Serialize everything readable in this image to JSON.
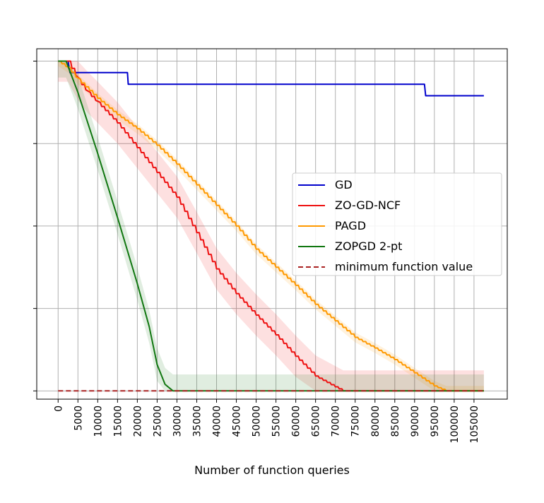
{
  "chart_data": {
    "type": "line",
    "title": "",
    "xlabel": "Number of function queries",
    "ylabel": "",
    "xlim": [
      -5400,
      113400
    ],
    "ylim": [
      -0.1,
      4.15
    ],
    "ytick_positions": [
      0,
      1,
      2,
      3,
      4
    ],
    "grid": true,
    "legend_position": "center-right",
    "xticks": [
      "0",
      "5000",
      "10000",
      "15000",
      "20000",
      "25000",
      "30000",
      "35000",
      "40000",
      "45000",
      "50000",
      "55000",
      "60000",
      "65000",
      "70000",
      "75000",
      "80000",
      "85000",
      "90000",
      "95000",
      "100000",
      "105000"
    ],
    "xtick_values": [
      0,
      5000,
      10000,
      15000,
      20000,
      25000,
      30000,
      35000,
      40000,
      45000,
      50000,
      55000,
      60000,
      65000,
      70000,
      75000,
      80000,
      85000,
      90000,
      95000,
      100000,
      105000
    ],
    "series": [
      {
        "name": "GD",
        "color": "#0000cc",
        "style": "step",
        "points": [
          [
            0,
            4.0
          ],
          [
            2500,
            4.0
          ],
          [
            3000,
            3.86
          ],
          [
            17500,
            3.86
          ],
          [
            17700,
            3.72
          ],
          [
            92500,
            3.72
          ],
          [
            92800,
            3.58
          ],
          [
            107500,
            3.58
          ]
        ]
      },
      {
        "name": "ZO-GD-NCF",
        "color": "#ee1111",
        "style": "stepped-line",
        "band": 0.25,
        "points": [
          [
            0,
            4.0
          ],
          [
            2500,
            4.0
          ],
          [
            5000,
            3.78
          ],
          [
            7500,
            3.62
          ],
          [
            10000,
            3.5
          ],
          [
            15000,
            3.25
          ],
          [
            20000,
            2.95
          ],
          [
            25000,
            2.65
          ],
          [
            30000,
            2.35
          ],
          [
            35000,
            1.92
          ],
          [
            40000,
            1.48
          ],
          [
            45000,
            1.18
          ],
          [
            50000,
            0.92
          ],
          [
            55000,
            0.68
          ],
          [
            60000,
            0.42
          ],
          [
            65000,
            0.18
          ],
          [
            70000,
            0.05
          ],
          [
            72000,
            0.0
          ],
          [
            107500,
            0.0
          ]
        ]
      },
      {
        "name": "PAGD",
        "color": "#ff9900",
        "style": "stepped-line",
        "band": 0.06,
        "points": [
          [
            0,
            4.0
          ],
          [
            2500,
            3.92
          ],
          [
            5000,
            3.78
          ],
          [
            10000,
            3.55
          ],
          [
            15000,
            3.35
          ],
          [
            20000,
            3.18
          ],
          [
            25000,
            2.98
          ],
          [
            30000,
            2.75
          ],
          [
            35000,
            2.5
          ],
          [
            40000,
            2.25
          ],
          [
            45000,
            2.0
          ],
          [
            50000,
            1.72
          ],
          [
            55000,
            1.5
          ],
          [
            60000,
            1.28
          ],
          [
            65000,
            1.05
          ],
          [
            70000,
            0.85
          ],
          [
            75000,
            0.65
          ],
          [
            80000,
            0.52
          ],
          [
            85000,
            0.38
          ],
          [
            90000,
            0.22
          ],
          [
            95000,
            0.06
          ],
          [
            98000,
            0.0
          ],
          [
            107500,
            0.0
          ]
        ]
      },
      {
        "name": "ZOPGD 2-pt",
        "color": "#117711",
        "style": "line",
        "band": 0.2,
        "points": [
          [
            0,
            4.0
          ],
          [
            2000,
            4.0
          ],
          [
            5000,
            3.62
          ],
          [
            10000,
            2.88
          ],
          [
            15000,
            2.1
          ],
          [
            20000,
            1.3
          ],
          [
            23000,
            0.78
          ],
          [
            25000,
            0.32
          ],
          [
            27000,
            0.08
          ],
          [
            29000,
            0.0
          ],
          [
            107500,
            0.0
          ]
        ]
      },
      {
        "name": "minimum function value",
        "color": "#aa2222",
        "style": "dashed",
        "points": [
          [
            0,
            0.0
          ],
          [
            107500,
            0.0
          ]
        ]
      }
    ]
  }
}
